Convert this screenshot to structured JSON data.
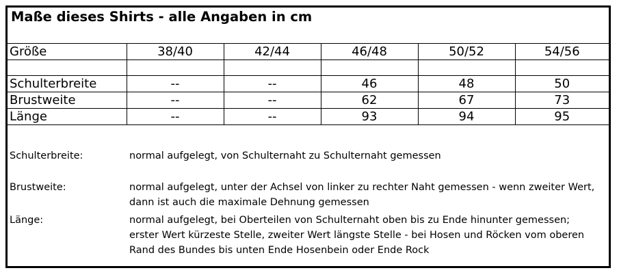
{
  "title": "Maße dieses Shirts - alle Angaben in cm",
  "table": {
    "header_label": "Größe",
    "sizes": [
      "38/40",
      "42/44",
      "46/48",
      "50/52",
      "54/56"
    ],
    "rows": [
      {
        "label": "Schulterbreite",
        "values": [
          "--",
          "--",
          "46",
          "48",
          "50"
        ]
      },
      {
        "label": "Brustweite",
        "values": [
          "--",
          "--",
          "62",
          "67",
          "73"
        ]
      },
      {
        "label": "Länge",
        "values": [
          "--",
          "--",
          "93",
          "94",
          "95"
        ]
      }
    ]
  },
  "descriptions": [
    {
      "term": "Schulterbreite:",
      "text": "normal aufgelegt, von Schulternaht zu Schulternaht gemessen"
    },
    {
      "term": "Brustweite:",
      "text": "normal aufgelegt, unter der Achsel von linker zu rechter Naht gemessen - wenn zweiter Wert, dann ist auch die maximale Dehnung gemessen"
    },
    {
      "term": "Länge:",
      "text": "normal aufgelegt, bei Oberteilen von Schulternaht oben bis zu Ende hinunter gemessen; erster Wert kürzeste Stelle, zweiter Wert längste Stelle - bei Hosen und Röcken vom oberen Rand des Bundes bis unten Ende Hosenbein oder Ende Rock"
    }
  ]
}
